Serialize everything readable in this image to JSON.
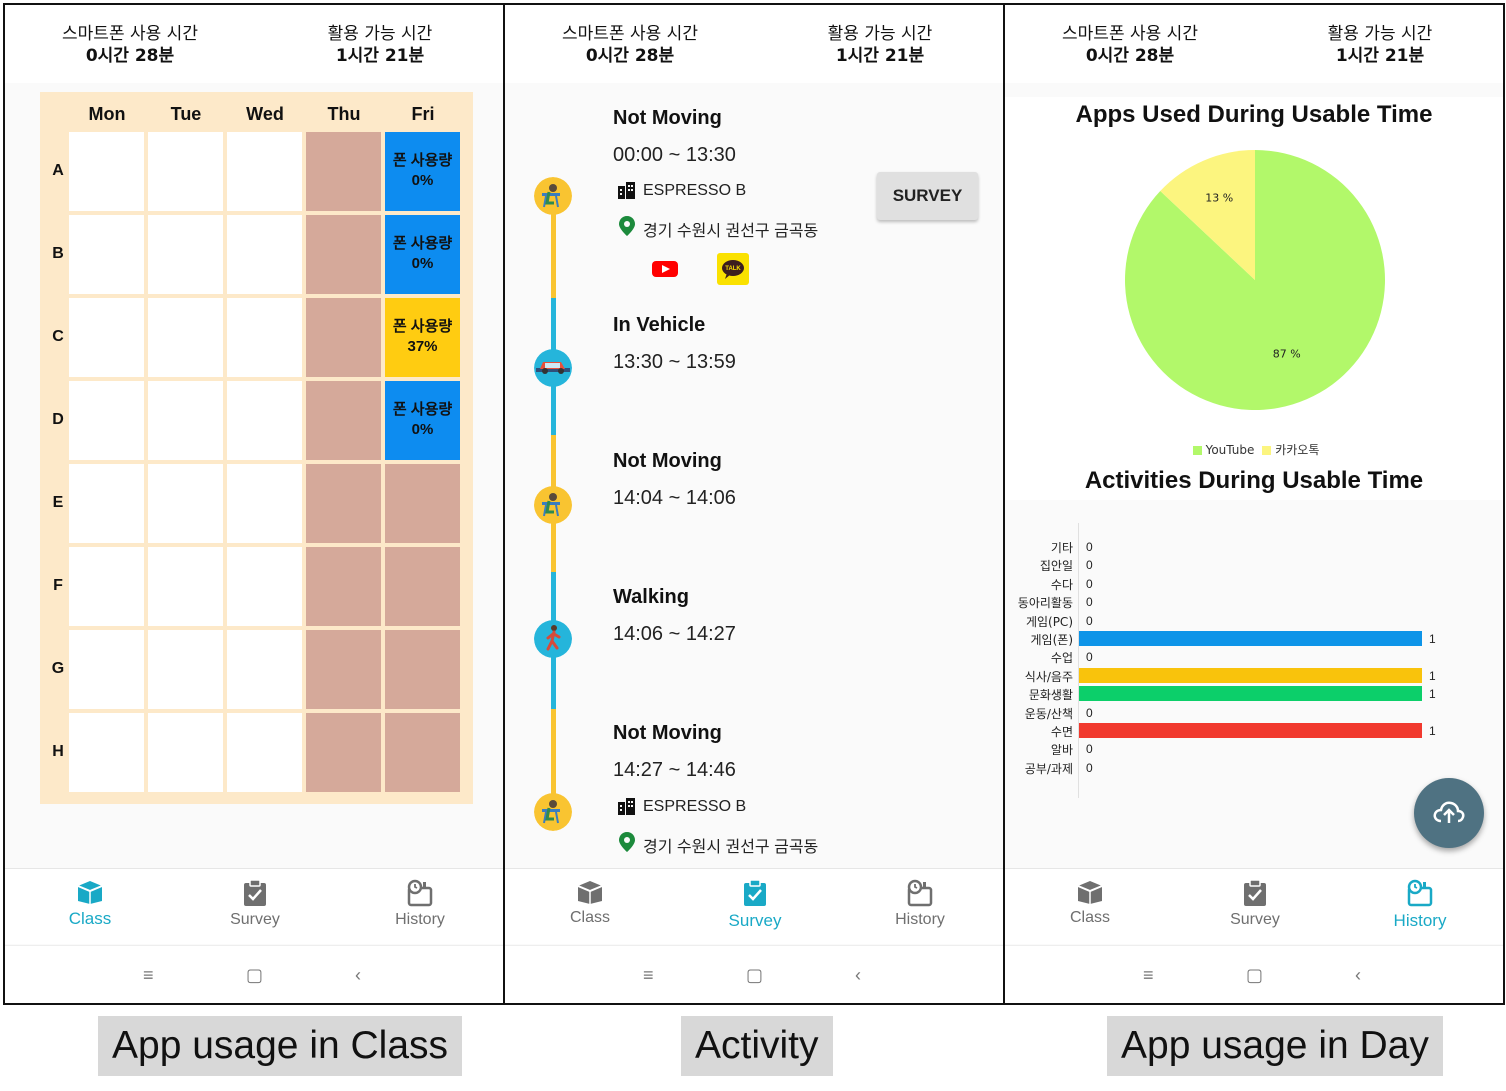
{
  "header": {
    "usage_label": "스마트폰 사용 시간",
    "usage_value": "0시간 28분",
    "available_label": "활용 가능 시간",
    "available_value": "1시간 21분"
  },
  "nav": {
    "class": "Class",
    "survey": "Survey",
    "history": "History"
  },
  "colors": {
    "accent": "#19a9c6",
    "timetable_bg": "#fde9c9",
    "off_cell": "#d5a99a",
    "usage_blue": "#0d8cf0",
    "usage_yellow": "#ffcc11",
    "timeline_yellow": "#f9c431",
    "timeline_blue": "#25b5db"
  },
  "screens": {
    "class": {
      "caption": "App usage in Class",
      "days": [
        "Mon",
        "Tue",
        "Wed",
        "Thu",
        "Fri"
      ],
      "rows": [
        "A",
        "B",
        "C",
        "D",
        "E",
        "F",
        "G",
        "H"
      ],
      "fri_cells": [
        {
          "label": "폰 사용량",
          "value": "0%",
          "color": "blue"
        },
        {
          "label": "폰 사용량",
          "value": "0%",
          "color": "blue"
        },
        {
          "label": "폰 사용량",
          "value": "37%",
          "color": "yellow"
        },
        {
          "label": "폰 사용량",
          "value": "0%",
          "color": "blue"
        }
      ]
    },
    "activity": {
      "caption": "Activity",
      "survey_button": "SURVEY",
      "items": [
        {
          "title": "Not Moving",
          "time": "00:00 ~ 13:30",
          "place": "ESPRESSO B",
          "address": "경기 수원시 권선구 금곡동",
          "apps": [
            "youtube-icon",
            "kakaotalk-icon"
          ],
          "kakao_text": "TALK"
        },
        {
          "title": "In Vehicle",
          "time": "13:30 ~ 13:59"
        },
        {
          "title": "Not Moving",
          "time": "14:04 ~ 14:06"
        },
        {
          "title": "Walking",
          "time": "14:06 ~ 14:27"
        },
        {
          "title": "Not Moving",
          "time": "14:27 ~ 14:46",
          "place": "ESPRESSO B",
          "address": "경기 수원시 권선구 금곡동"
        }
      ]
    },
    "history": {
      "caption": "App usage in Day",
      "apps_title": "Apps Used During Usable Time",
      "activities_title": "Activities During Usable Time"
    }
  },
  "chart_data": [
    {
      "type": "pie",
      "title": "Apps Used During Usable Time",
      "categories": [
        "YouTube",
        "카카오톡"
      ],
      "values": [
        87,
        13
      ],
      "value_labels": [
        "87 %",
        "13 %"
      ],
      "colors": [
        "#b2f86a",
        "#fcf57f"
      ],
      "legend": "bottom"
    },
    {
      "type": "bar",
      "orientation": "horizontal",
      "title": "Activities During Usable Time",
      "categories": [
        "기타",
        "집안일",
        "수다",
        "동아리활동",
        "게임(PC)",
        "게임(폰)",
        "수업",
        "식사/음주",
        "문화생활",
        "운동/산책",
        "수면",
        "알바",
        "공부/과제"
      ],
      "values": [
        0,
        0,
        0,
        0,
        0,
        1,
        0,
        1,
        1,
        0,
        1,
        0,
        0
      ],
      "colors": [
        "#888888",
        "#888888",
        "#888888",
        "#888888",
        "#888888",
        "#0d94e8",
        "#888888",
        "#f9c30c",
        "#0ccf6a",
        "#888888",
        "#f1392e",
        "#888888",
        "#888888"
      ],
      "xlim": [
        0,
        1
      ]
    }
  ]
}
